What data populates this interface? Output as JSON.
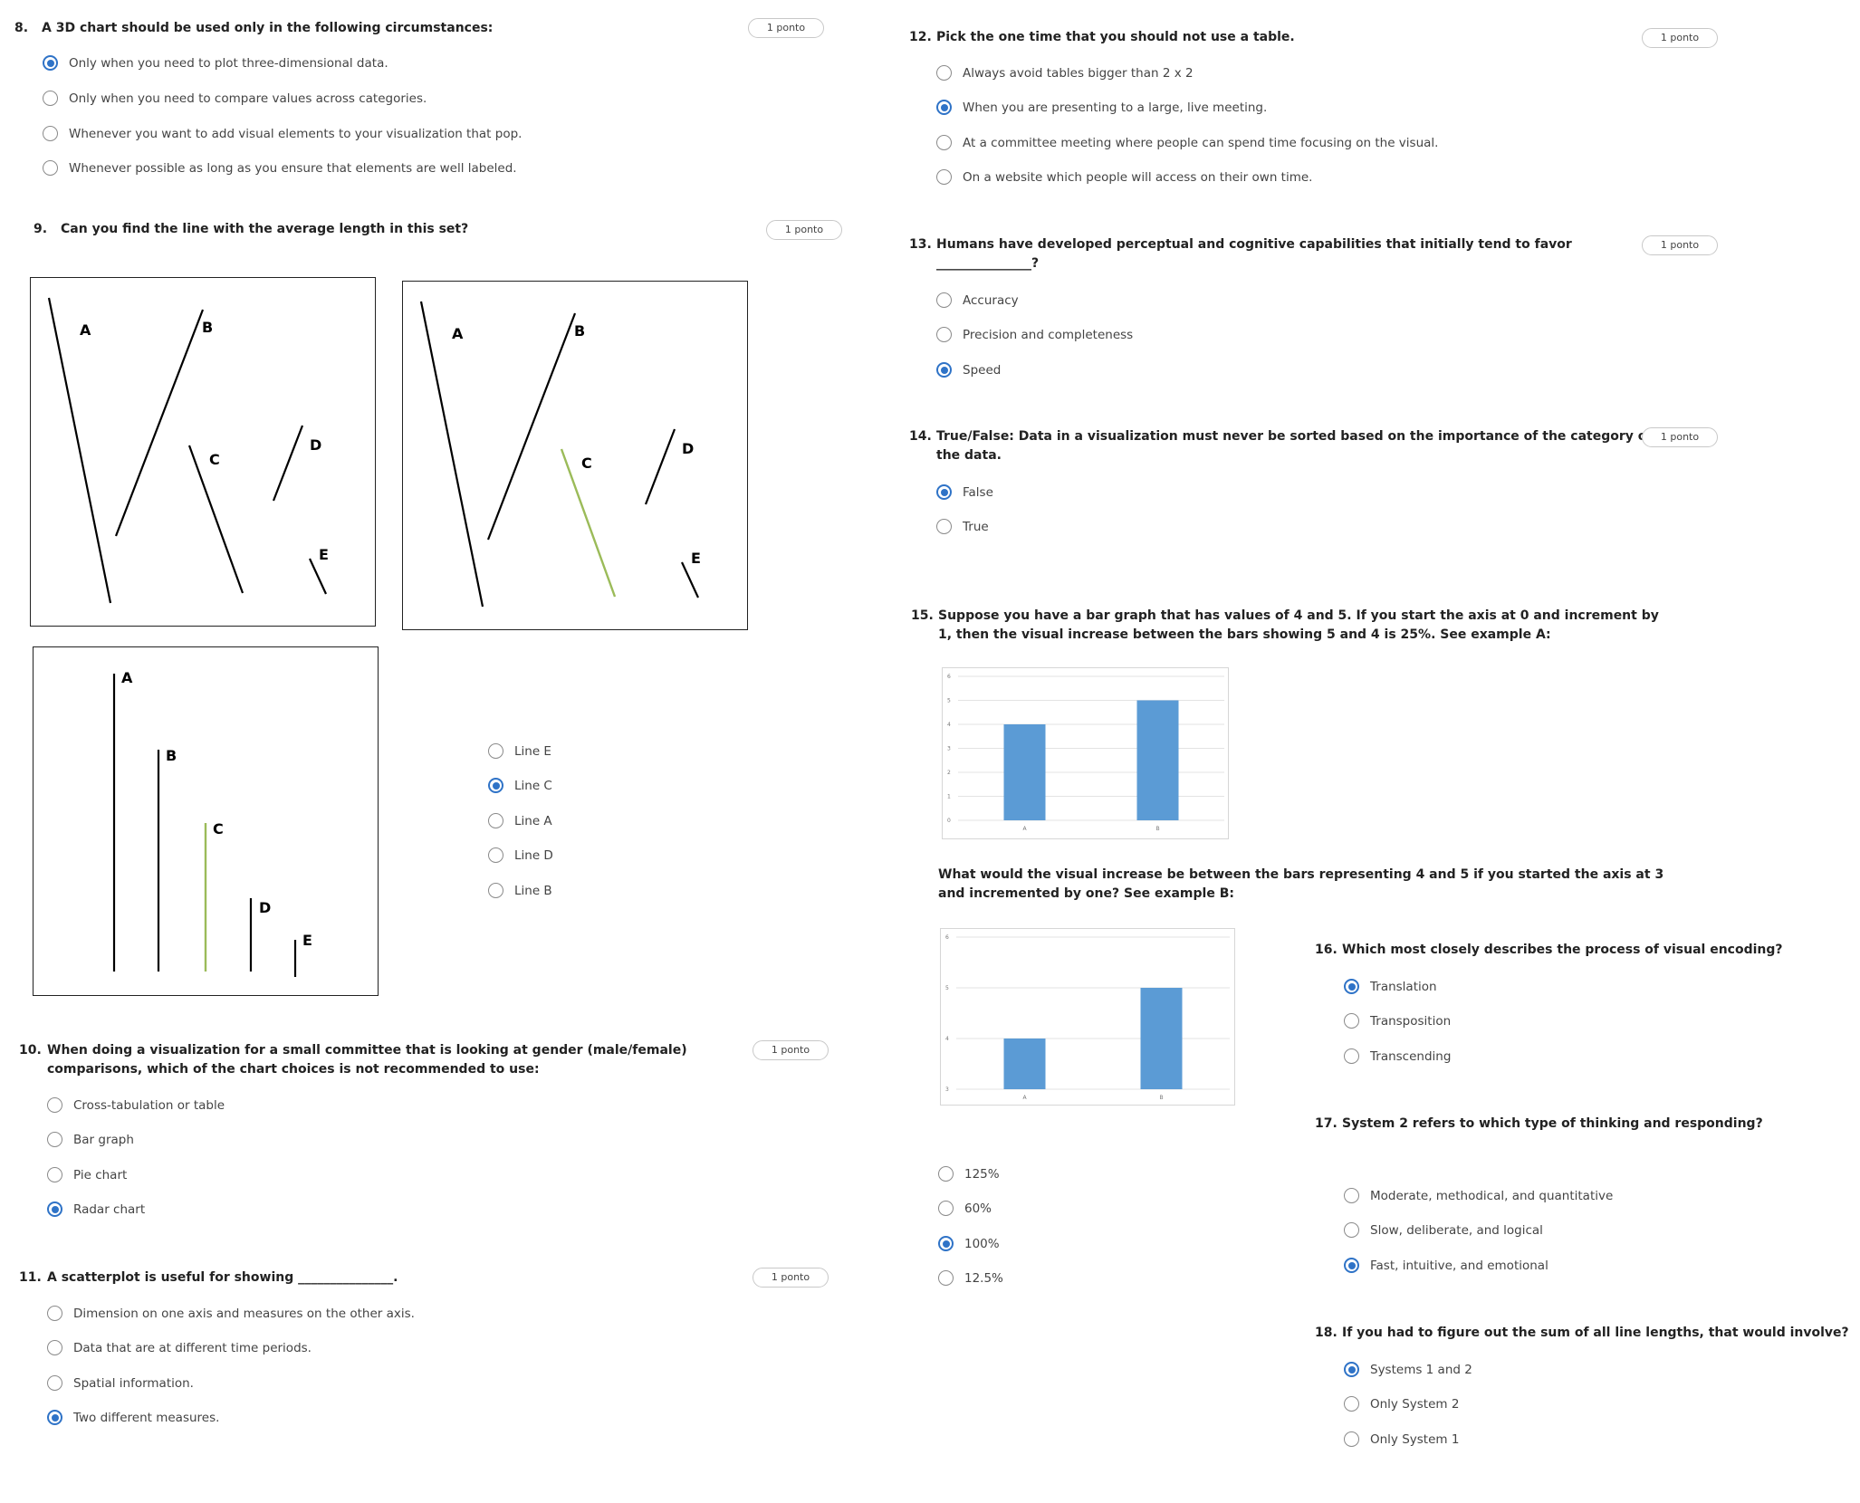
{
  "points_label": "1 ponto",
  "colors": {
    "accent": "#2f73c7",
    "bar": "#5b9bd5",
    "highlight_line": "#9bbb59"
  },
  "q8": {
    "num": "8.",
    "text": "A 3D chart should be used only in the following circumstances:",
    "options": [
      {
        "label": "Only when you need to plot three-dimensional data.",
        "selected": true
      },
      {
        "label": "Only when you need to compare values across categories.",
        "selected": false
      },
      {
        "label": "Whenever you want to add visual elements to your visualization that pop.",
        "selected": false
      },
      {
        "label": "Whenever possible as long as you ensure that elements are well labeled.",
        "selected": false
      }
    ]
  },
  "q9": {
    "num": "9.",
    "text": "Can you find the line with the average length in this set?",
    "figure_labels": [
      "A",
      "B",
      "C",
      "D",
      "E"
    ],
    "options": [
      {
        "label": "Line E",
        "selected": false
      },
      {
        "label": "Line C",
        "selected": true
      },
      {
        "label": "Line A",
        "selected": false
      },
      {
        "label": "Line D",
        "selected": false
      },
      {
        "label": "Line B",
        "selected": false
      }
    ]
  },
  "q10": {
    "num": "10.",
    "text_line1": "When doing a visualization for a small committee that is looking at gender (male/female)",
    "text_line2": "comparisons, which of the chart choices is not recommended to use:",
    "options": [
      {
        "label": "Cross-tabulation or table",
        "selected": false
      },
      {
        "label": "Bar graph",
        "selected": false
      },
      {
        "label": "Pie chart",
        "selected": false
      },
      {
        "label": "Radar chart",
        "selected": true
      }
    ]
  },
  "q11": {
    "num": "11.",
    "text": "A scatterplot is useful for showing _______________.",
    "options": [
      {
        "label": "Dimension on one axis and measures on the other axis.",
        "selected": false
      },
      {
        "label": "Data that are at different time periods.",
        "selected": false
      },
      {
        "label": "Spatial information.",
        "selected": false
      },
      {
        "label": "Two different measures.",
        "selected": true
      }
    ]
  },
  "q12": {
    "num": "12.",
    "text": "Pick the one time that you should not use a table.",
    "options": [
      {
        "label": "Always avoid tables bigger than 2 x 2",
        "selected": false
      },
      {
        "label": "When you are presenting to a large, live meeting.",
        "selected": true
      },
      {
        "label": "At a committee meeting where people can spend time focusing on the visual.",
        "selected": false
      },
      {
        "label": "On a website which people will access on their own time.",
        "selected": false
      }
    ]
  },
  "q13": {
    "num": "13.",
    "text_line1": "Humans have developed perceptual and cognitive capabilities that initially tend to favor",
    "text_line2": "_______________?",
    "options": [
      {
        "label": "Accuracy",
        "selected": false
      },
      {
        "label": "Precision and completeness",
        "selected": false
      },
      {
        "label": "Speed",
        "selected": true
      }
    ]
  },
  "q14": {
    "num": "14.",
    "text_line1": "True/False: Data in a visualization must never be sorted based on the importance of the category of",
    "text_line2": "the data.",
    "options": [
      {
        "label": "False",
        "selected": true
      },
      {
        "label": "True",
        "selected": false
      }
    ]
  },
  "q15": {
    "num": "15.",
    "text_line1": "Suppose you have a bar graph that has values of 4 and 5. If you start the axis at 0 and increment by",
    "text_line2": "1, then the visual increase between the bars showing 5 and 4 is 25%. See example A:",
    "sub_line1": "What would the visual increase be between the bars representing 4 and 5 if you started the axis at 3",
    "sub_line2": "and incremented by one? See example B:",
    "chart_a": {
      "ticks": [
        "0",
        "1",
        "2",
        "3",
        "4",
        "5",
        "6"
      ],
      "categories": [
        "A",
        "B"
      ],
      "values": [
        4,
        5
      ],
      "ymin": 0,
      "ymax": 6
    },
    "chart_b": {
      "ticks": [
        "3",
        "4",
        "5",
        "6"
      ],
      "categories": [
        "A",
        "B"
      ],
      "values": [
        4,
        5
      ],
      "ymin": 3,
      "ymax": 6
    },
    "options": [
      {
        "label": "125%",
        "selected": false
      },
      {
        "label": "60%",
        "selected": false
      },
      {
        "label": "100%",
        "selected": true
      },
      {
        "label": "12.5%",
        "selected": false
      }
    ]
  },
  "q16": {
    "num": "16.",
    "text": "Which most closely describes the process of visual encoding?",
    "options": [
      {
        "label": "Translation",
        "selected": true
      },
      {
        "label": "Transposition",
        "selected": false
      },
      {
        "label": "Transcending",
        "selected": false
      }
    ]
  },
  "q17": {
    "num": "17.",
    "text": "System 2 refers to which type of thinking and responding?",
    "options": [
      {
        "label": "Moderate, methodical, and quantitative",
        "selected": false
      },
      {
        "label": "Slow, deliberate, and logical",
        "selected": false
      },
      {
        "label": "Fast, intuitive, and emotional",
        "selected": true
      }
    ]
  },
  "q18": {
    "num": "18.",
    "text": "If you had to figure out the sum of all line lengths, that would involve?",
    "options": [
      {
        "label": "Systems 1 and 2",
        "selected": true
      },
      {
        "label": "Only System 2",
        "selected": false
      },
      {
        "label": "Only System 1",
        "selected": false
      }
    ]
  }
}
